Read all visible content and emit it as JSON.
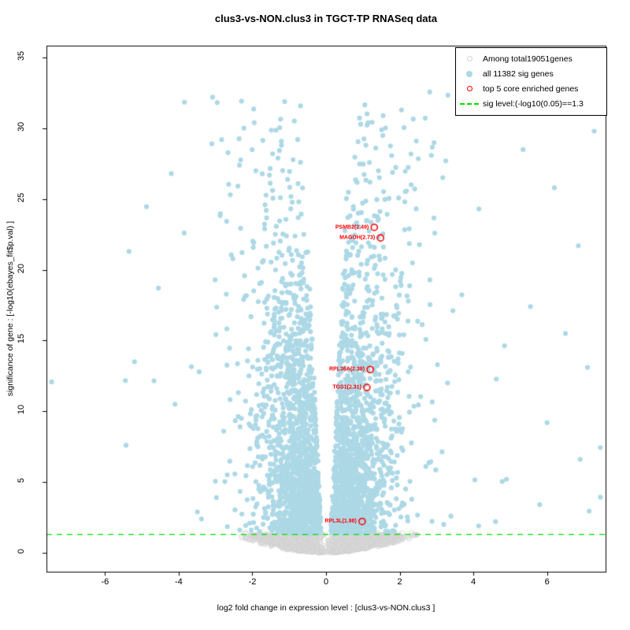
{
  "figure": {
    "title": "clus3-vs-NON.clus3 in TGCT-TP RNASeq data"
  },
  "axes": {
    "xlabel": "log2 fold change in expression level : [clus3-vs-NON.clus3 ]",
    "ylabel": "significance of gene : [-log10(ebayes_fit$p.val) ]",
    "x_ticks": [
      -6,
      -4,
      -2,
      0,
      2,
      4,
      6
    ],
    "y_ticks": [
      0,
      5,
      10,
      15,
      20,
      25,
      30,
      35
    ]
  },
  "legend": {
    "items": [
      {
        "marker": "open-circle",
        "color": "#D3D3D3",
        "label": "Among total19051genes"
      },
      {
        "marker": "filled-circle",
        "color": "#ADD8E6",
        "label": "all 11382 sig genes"
      },
      {
        "marker": "open-circle",
        "color": "#FF0000",
        "label": "top 5 core enriched genes"
      },
      {
        "marker": "dashed-line",
        "color": "#00E000",
        "label": "sig level:(-log10(0.05)==1.3"
      }
    ]
  },
  "colors": {
    "sig_points": "#ADD8E6",
    "nonsig_points": "#D3D3D3",
    "highlight": "#FF0000",
    "sig_line": "#00E000",
    "axis": "#000000"
  },
  "chart_data": {
    "type": "scatter",
    "subtype": "volcano",
    "title": "clus3-vs-NON.clus3 in TGCT-TP RNASeq data",
    "xlabel": "log2 fold change in expression level : [clus3-vs-NON.clus3 ]",
    "ylabel": "significance of gene : [-log10(ebayes_fit$p.val) ]",
    "xlim": [
      -7.59,
      7.59
    ],
    "ylim": [
      -1.34,
      35.84
    ],
    "grid": false,
    "legend_position": "top-right",
    "total_genes": 19051,
    "significant_genes": 11382,
    "sig_threshold": {
      "y": 1.3,
      "label": "sig level:(-log10(0.05)==1.3",
      "style": "dashed",
      "color": "#00E000"
    },
    "highlighted_genes": [
      {
        "gene": "PSMB2",
        "score": "2.49",
        "x": 1.31,
        "y": 23.0
      },
      {
        "gene": "MAGOH",
        "score": "2.73",
        "x": 1.48,
        "y": 22.25
      },
      {
        "gene": "RPL36A",
        "score": "2.38",
        "x": 1.2,
        "y": 12.95
      },
      {
        "gene": "TGS1",
        "score": "2.31",
        "x": 1.11,
        "y": 11.68
      },
      {
        "gene": "RPL3L",
        "score": "1.98",
        "x": 0.98,
        "y": 2.21
      }
    ],
    "sig_outliers": [
      [
        -3.08,
        32.2
      ],
      [
        -1.95,
        30.4
      ],
      [
        -3.1,
        28.9
      ],
      [
        -2.35,
        27.4
      ],
      [
        -4.2,
        26.8
      ],
      [
        -2.6,
        25.3
      ],
      [
        -1.45,
        28.2
      ],
      [
        -3.85,
        22.6
      ],
      [
        -5.35,
        21.3
      ],
      [
        -4.55,
        18.7
      ],
      [
        -5.2,
        13.5
      ],
      [
        -5.43,
        7.6
      ],
      [
        -4.1,
        10.5
      ],
      [
        1.55,
        30.9
      ],
      [
        2.05,
        31.3
      ],
      [
        1.35,
        28.6
      ],
      [
        2.45,
        29.1
      ],
      [
        3.25,
        27.7
      ],
      [
        5.35,
        28.5
      ],
      [
        7.28,
        29.8
      ],
      [
        6.2,
        25.8
      ],
      [
        4.15,
        24.3
      ],
      [
        6.85,
        21.7
      ],
      [
        5.55,
        17.4
      ],
      [
        6.5,
        15.5
      ],
      [
        7.1,
        13.1
      ],
      [
        6.0,
        9.2
      ],
      [
        6.9,
        6.6
      ],
      [
        4.9,
        5.2
      ],
      [
        5.8,
        3.4
      ]
    ],
    "render": {
      "seed": 20240601,
      "n_sig": 3200,
      "n_nonsig": 1750,
      "n_nonsig_edge": 32,
      "point_radius": 3.1,
      "sig_y_mean": 7.5,
      "sig_y_min": 1.35,
      "sig_y_max": 33.0,
      "sig_inner_base": 0.1,
      "sig_inner_slope": 0.018,
      "sig_spread_base": 0.62,
      "sig_spread_slope": 0.015,
      "sig_tail_prob": 0.07,
      "sig_tail_scale": 0.95,
      "x_abs_max": 7.45,
      "nonsig_half_width": 2.05,
      "nonsig_y_max": 1.28,
      "notch_halfwidth": 0.05
    }
  }
}
